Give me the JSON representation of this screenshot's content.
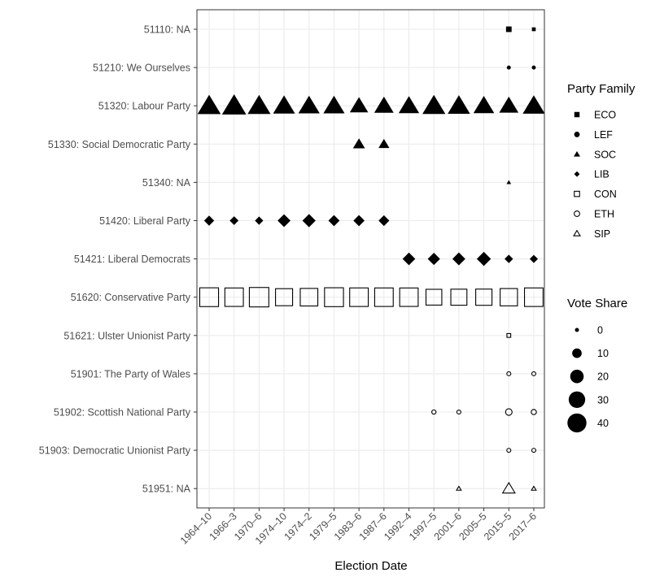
{
  "chart_data": {
    "type": "scatter",
    "title": "",
    "xlabel": "Election Date",
    "ylabel": "",
    "grid": true,
    "x_categories": [
      "1964–10",
      "1966–3",
      "1970–6",
      "1974–10",
      "1974–2",
      "1979–5",
      "1983–6",
      "1987–6",
      "1992–4",
      "1997–5",
      "2001–6",
      "2005–5",
      "2015–5",
      "2017–6"
    ],
    "y_categories": [
      "51110: NA",
      "51210: We Ourselves",
      "51320: Labour Party",
      "51330: Social Democratic Party",
      "51340: NA",
      "51420: Liberal Party",
      "51421: Liberal Democrats",
      "51620: Conservative Party",
      "51621: Ulster Unionist Party",
      "51901: The Party of Wales",
      "51902: Scottish National Party",
      "51903: Democratic Unionist Party",
      "51951: NA"
    ],
    "parties": [
      {
        "label": "51110: NA",
        "family": "ECO",
        "points": [
          {
            "x": "2015–5",
            "vote_share": 3.8
          },
          {
            "x": "2017–6",
            "vote_share": 1.6
          }
        ]
      },
      {
        "label": "51210: We Ourselves",
        "family": "LEF",
        "points": [
          {
            "x": "2015–5",
            "vote_share": 0.6
          },
          {
            "x": "2017–6",
            "vote_share": 0.7
          }
        ]
      },
      {
        "label": "51320: Labour Party",
        "family": "SOC",
        "points": [
          {
            "x": "1964–10",
            "vote_share": 44.1
          },
          {
            "x": "1966–3",
            "vote_share": 48.0
          },
          {
            "x": "1970–6",
            "vote_share": 43.0
          },
          {
            "x": "1974–10",
            "vote_share": 39.2
          },
          {
            "x": "1974–2",
            "vote_share": 37.2
          },
          {
            "x": "1979–5",
            "vote_share": 36.9
          },
          {
            "x": "1983–6",
            "vote_share": 27.6
          },
          {
            "x": "1987–6",
            "vote_share": 30.8
          },
          {
            "x": "1992–4",
            "vote_share": 34.4
          },
          {
            "x": "1997–5",
            "vote_share": 43.2
          },
          {
            "x": "2001–6",
            "vote_share": 40.7
          },
          {
            "x": "2005–5",
            "vote_share": 35.2
          },
          {
            "x": "2015–5",
            "vote_share": 30.4
          },
          {
            "x": "2017–6",
            "vote_share": 40.0
          }
        ]
      },
      {
        "label": "51330: Social Democratic Party",
        "family": "SOC",
        "points": [
          {
            "x": "1983–6",
            "vote_share": 11.7
          },
          {
            "x": "1987–6",
            "vote_share": 9.7
          }
        ]
      },
      {
        "label": "51340: NA",
        "family": "SOC",
        "points": [
          {
            "x": "2015–5",
            "vote_share": 0.3
          }
        ]
      },
      {
        "label": "51420: Liberal Party",
        "family": "LIB",
        "points": [
          {
            "x": "1964–10",
            "vote_share": 11.2
          },
          {
            "x": "1966–3",
            "vote_share": 8.5
          },
          {
            "x": "1970–6",
            "vote_share": 7.5
          },
          {
            "x": "1974–10",
            "vote_share": 18.3
          },
          {
            "x": "1974–2",
            "vote_share": 19.3
          },
          {
            "x": "1979–5",
            "vote_share": 13.8
          },
          {
            "x": "1983–6",
            "vote_share": 13.7
          },
          {
            "x": "1987–6",
            "vote_share": 12.8
          }
        ]
      },
      {
        "label": "51421: Liberal Democrats",
        "family": "LIB",
        "points": [
          {
            "x": "1992–4",
            "vote_share": 17.8
          },
          {
            "x": "1997–5",
            "vote_share": 16.8
          },
          {
            "x": "2001–6",
            "vote_share": 18.3
          },
          {
            "x": "2005–5",
            "vote_share": 22.0
          },
          {
            "x": "2015–5",
            "vote_share": 7.9
          },
          {
            "x": "2017–6",
            "vote_share": 7.4
          }
        ]
      },
      {
        "label": "51620: Conservative Party",
        "family": "CON",
        "points": [
          {
            "x": "1964–10",
            "vote_share": 43.4
          },
          {
            "x": "1966–3",
            "vote_share": 41.9
          },
          {
            "x": "1970–6",
            "vote_share": 46.4
          },
          {
            "x": "1974–10",
            "vote_share": 35.8
          },
          {
            "x": "1974–2",
            "vote_share": 37.9
          },
          {
            "x": "1979–5",
            "vote_share": 43.9
          },
          {
            "x": "1983–6",
            "vote_share": 42.4
          },
          {
            "x": "1987–6",
            "vote_share": 42.2
          },
          {
            "x": "1992–4",
            "vote_share": 41.9
          },
          {
            "x": "1997–5",
            "vote_share": 30.7
          },
          {
            "x": "2001–6",
            "vote_share": 31.7
          },
          {
            "x": "2005–5",
            "vote_share": 32.4
          },
          {
            "x": "2015–5",
            "vote_share": 36.9
          },
          {
            "x": "2017–6",
            "vote_share": 42.4
          }
        ]
      },
      {
        "label": "51621: Ulster Unionist Party",
        "family": "CON",
        "points": [
          {
            "x": "2015–5",
            "vote_share": 0.4
          }
        ]
      },
      {
        "label": "51901: The Party of Wales",
        "family": "ETH",
        "points": [
          {
            "x": "2015–5",
            "vote_share": 0.6
          },
          {
            "x": "2017–6",
            "vote_share": 0.5
          }
        ]
      },
      {
        "label": "51902: Scottish National Party",
        "family": "ETH",
        "points": [
          {
            "x": "1997–5",
            "vote_share": 2.0
          },
          {
            "x": "2001–6",
            "vote_share": 1.8
          },
          {
            "x": "2015–5",
            "vote_share": 4.7
          },
          {
            "x": "2017–6",
            "vote_share": 3.0
          }
        ]
      },
      {
        "label": "51903: Democratic Unionist Party",
        "family": "ETH",
        "points": [
          {
            "x": "2015–5",
            "vote_share": 0.6
          },
          {
            "x": "2017–6",
            "vote_share": 0.9
          }
        ]
      },
      {
        "label": "51951: NA",
        "family": "SIP",
        "points": [
          {
            "x": "2001–6",
            "vote_share": 0.1
          },
          {
            "x": "2015–5",
            "vote_share": 12.6
          },
          {
            "x": "2017–6",
            "vote_share": 1.8
          }
        ]
      }
    ],
    "legend_shape": {
      "title": "Party Family",
      "items": [
        {
          "label": "ECO",
          "shape": "square-filled"
        },
        {
          "label": "LEF",
          "shape": "circle-filled"
        },
        {
          "label": "SOC",
          "shape": "triangle-filled"
        },
        {
          "label": "LIB",
          "shape": "diamond-filled"
        },
        {
          "label": "CON",
          "shape": "square-open"
        },
        {
          "label": "ETH",
          "shape": "circle-open"
        },
        {
          "label": "SIP",
          "shape": "triangle-open"
        }
      ]
    },
    "legend_size": {
      "title": "Vote Share",
      "items": [
        {
          "label": "0",
          "value": 0
        },
        {
          "label": "10",
          "value": 10
        },
        {
          "label": "20",
          "value": 20
        },
        {
          "label": "30",
          "value": 30
        },
        {
          "label": "40",
          "value": 40
        }
      ]
    },
    "legend_position": "right",
    "colors": {
      "mark": "#000000",
      "grid": "#ebebeb",
      "panel_border": "#333333",
      "tick_text": "#4d4d4d"
    }
  }
}
